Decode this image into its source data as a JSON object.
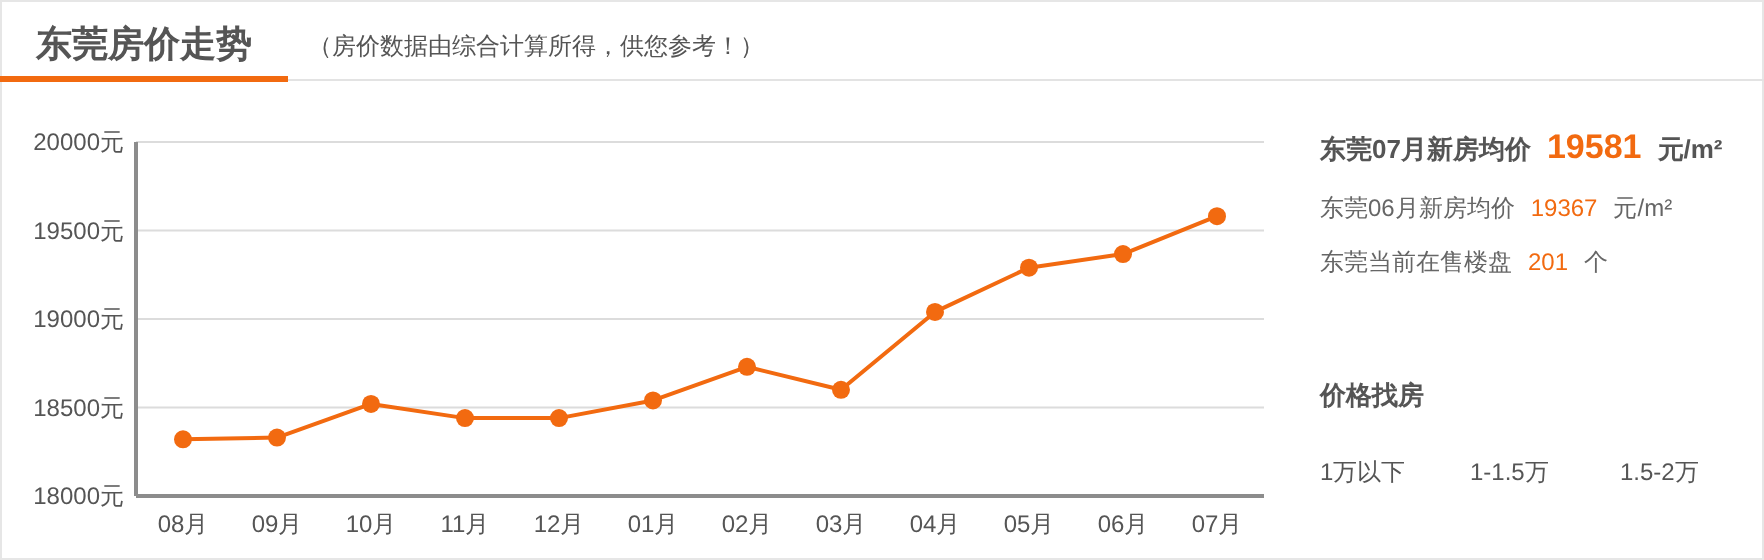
{
  "chart_data": {
    "type": "line",
    "title": "东莞房价走势",
    "subtitle": "（房价数据由综合计算所得，供您参考！）",
    "categories": [
      "08月",
      "09月",
      "10月",
      "11月",
      "12月",
      "01月",
      "02月",
      "03月",
      "04月",
      "05月",
      "06月",
      "07月"
    ],
    "series": [
      {
        "color": "#f26a10",
        "values": [
          18320,
          18330,
          18520,
          18440,
          18440,
          18540,
          18730,
          18600,
          19040,
          19290,
          19367,
          19581
        ]
      }
    ],
    "ylim": [
      18000,
      20000
    ],
    "yticks": [
      {
        "value": 18000,
        "label": "18000元"
      },
      {
        "value": 18500,
        "label": "18500元"
      },
      {
        "value": 19000,
        "label": "19000元"
      },
      {
        "value": 19500,
        "label": "19500元"
      },
      {
        "value": 20000,
        "label": "20000元"
      }
    ],
    "grid": "y",
    "marker": "circle",
    "line_style": "solid",
    "annotations": [
      "东莞07月新房均价",
      "19581",
      "元/m²",
      "东莞06月新房均价",
      "19367",
      "元/m²",
      "东莞当前在售楼盘",
      "201",
      "个",
      "价格找房",
      "1万以下",
      "1-1.5万",
      "1.5-2万"
    ]
  }
}
